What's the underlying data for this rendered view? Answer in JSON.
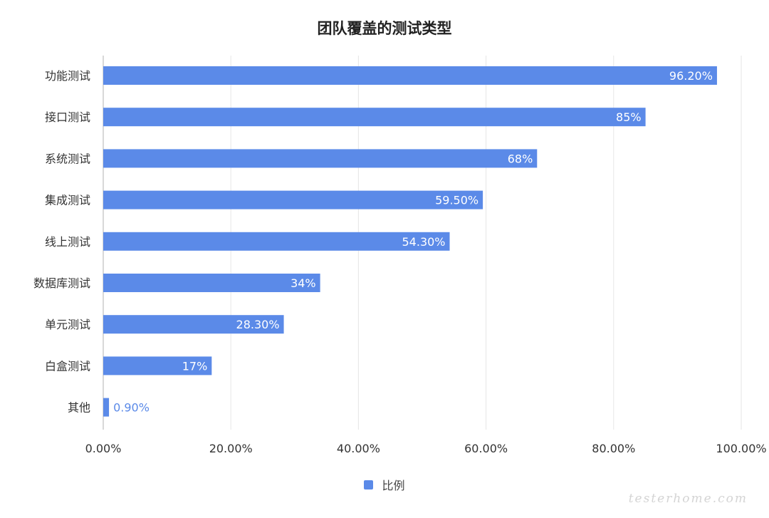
{
  "chart_data": {
    "type": "bar",
    "orientation": "horizontal",
    "title": "团队覆盖的测试类型",
    "categories": [
      "功能测试",
      "接口测试",
      "系统测试",
      "集成测试",
      "线上测试",
      "数据库测试",
      "单元测试",
      "白盒测试",
      "其他"
    ],
    "series": [
      {
        "name": "比例",
        "values": [
          96.2,
          85,
          68,
          59.5,
          54.3,
          34,
          28.3,
          17,
          0.9
        ],
        "labels": [
          "96.20%",
          "85%",
          "68%",
          "59.50%",
          "54.30%",
          "34%",
          "28.30%",
          "17%",
          "0.90%"
        ],
        "color": "#5b8ae8"
      }
    ],
    "xlim": [
      0,
      100
    ],
    "x_ticks": [
      "0.00%",
      "20.00%",
      "40.00%",
      "60.00%",
      "80.00%",
      "100.00%"
    ],
    "grid": true,
    "legend_position": "bottom"
  },
  "legend": {
    "label": "比例"
  },
  "watermark": "testerhome.com",
  "colors": {
    "bar": "#5b8ae8",
    "grid": "#e6e6e6",
    "axis": "#cccccc",
    "text": "#333333",
    "outside_label": "#5b8ae8"
  }
}
